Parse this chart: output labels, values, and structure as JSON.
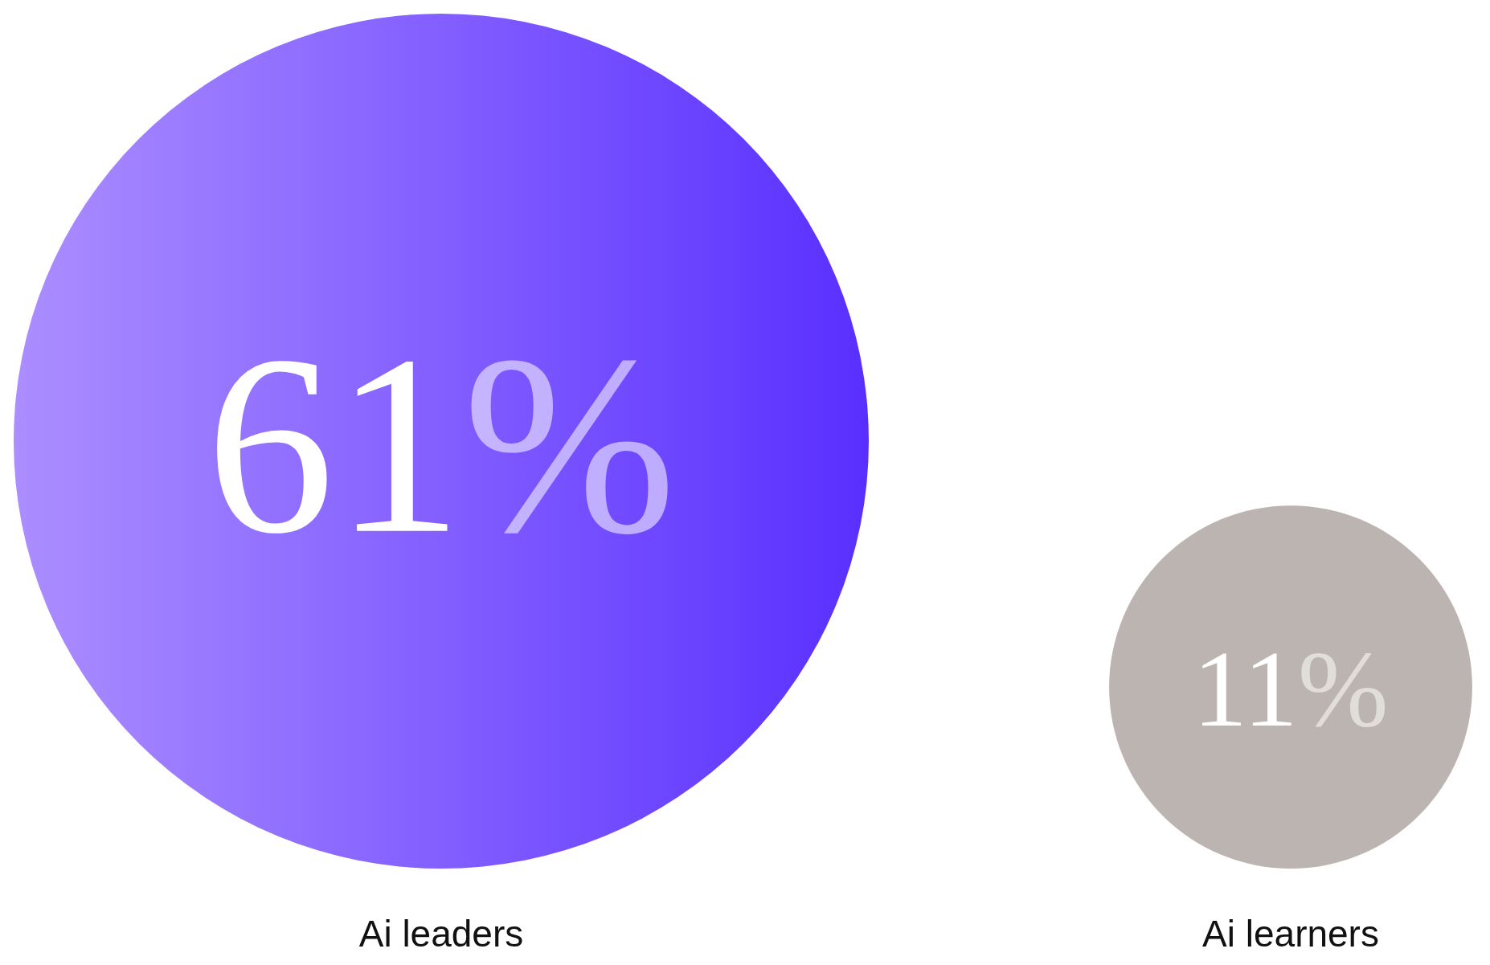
{
  "chart_data": {
    "type": "bubble",
    "categories": [
      "Ai leaders",
      "Ai learners"
    ],
    "values": [
      61,
      11
    ],
    "value_labels": [
      "61%",
      "11%"
    ],
    "colors": [
      "#7443ff",
      "#bcb4b0"
    ]
  }
}
